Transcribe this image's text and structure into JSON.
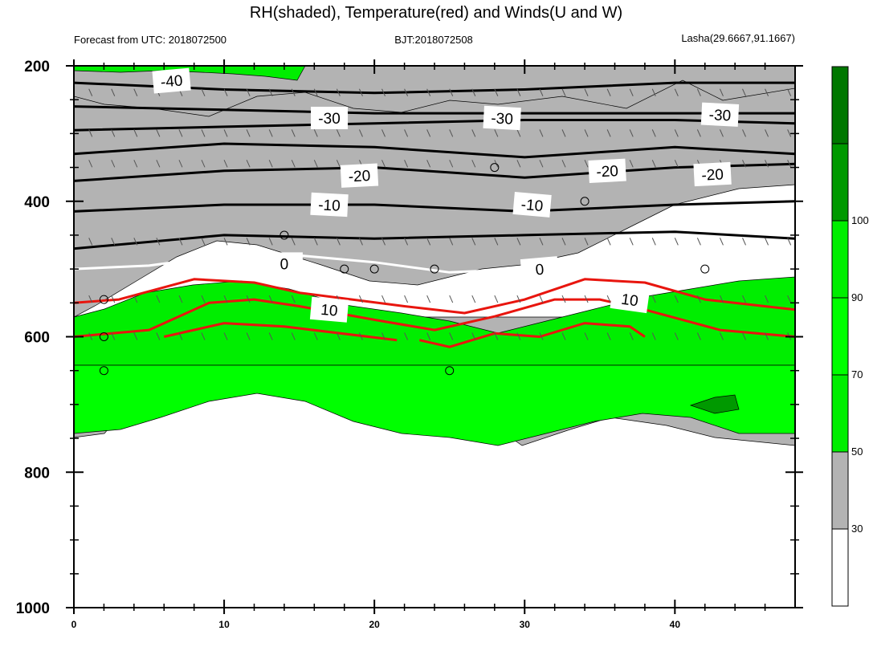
{
  "chart_data": {
    "type": "contour",
    "title": "RH(shaded), Temperature(red) and Winds(U and W)",
    "subtitle_left": "Forecast from UTC: 2018072500",
    "subtitle_center": "BJT:2018072508",
    "subtitle_right": "Lasha(29.6667,91.1667)",
    "xlim": [
      0,
      48
    ],
    "ylim": [
      1000,
      200
    ],
    "x_ticks": [
      0,
      10,
      20,
      30,
      40
    ],
    "y_ticks": [
      200,
      400,
      600,
      800,
      1000
    ],
    "colorbar": {
      "levels": [
        30,
        50,
        70,
        90,
        100
      ],
      "colors": [
        "#ffffff",
        "#b3b3b3",
        "#00ee00",
        "#00ff00",
        "#00ee00",
        "#009900",
        "#007700"
      ]
    },
    "temperature_labels": [
      "-40",
      "-30",
      "-30",
      "-30",
      "-20",
      "-20",
      "-20",
      "-10",
      "-10",
      "0",
      "0",
      "10",
      "10"
    ],
    "contours": {
      "white_zero": [
        [
          0,
          500
        ],
        [
          5,
          495
        ],
        [
          10,
          480
        ],
        [
          15,
          480
        ],
        [
          20,
          490
        ],
        [
          25,
          505
        ],
        [
          30,
          500
        ],
        [
          35,
          480
        ],
        [
          40,
          490
        ],
        [
          45,
          505
        ],
        [
          48,
          505
        ]
      ],
      "black_m10_a": [
        [
          0,
          415
        ],
        [
          10,
          405
        ],
        [
          20,
          405
        ],
        [
          30,
          415
        ],
        [
          40,
          405
        ],
        [
          48,
          400
        ]
      ],
      "black_m10_b": [
        [
          0,
          470
        ],
        [
          10,
          450
        ],
        [
          20,
          455
        ],
        [
          30,
          450
        ],
        [
          40,
          445
        ],
        [
          48,
          455
        ]
      ],
      "black_m20_a": [
        [
          0,
          370
        ],
        [
          10,
          355
        ],
        [
          20,
          350
        ],
        [
          30,
          365
        ],
        [
          40,
          350
        ],
        [
          48,
          345
        ]
      ],
      "black_m20_b": [
        [
          0,
          330
        ],
        [
          10,
          315
        ],
        [
          20,
          320
        ],
        [
          30,
          335
        ],
        [
          40,
          320
        ],
        [
          48,
          330
        ]
      ],
      "black_m30_a": [
        [
          0,
          295
        ],
        [
          10,
          290
        ],
        [
          20,
          285
        ],
        [
          30,
          280
        ],
        [
          40,
          280
        ],
        [
          48,
          285
        ]
      ],
      "black_m30_b": [
        [
          0,
          260
        ],
        [
          10,
          265
        ],
        [
          20,
          270
        ],
        [
          30,
          270
        ],
        [
          40,
          270
        ],
        [
          48,
          270
        ]
      ],
      "black_m40": [
        [
          0,
          225
        ],
        [
          10,
          235
        ],
        [
          20,
          240
        ],
        [
          30,
          235
        ],
        [
          40,
          225
        ],
        [
          48,
          225
        ]
      ],
      "red_1": [
        [
          0,
          550
        ],
        [
          3,
          545
        ],
        [
          8,
          515
        ],
        [
          12,
          520
        ],
        [
          15,
          535
        ],
        [
          22,
          555
        ],
        [
          26,
          565
        ],
        [
          30,
          545
        ],
        [
          34,
          515
        ],
        [
          38,
          520
        ],
        [
          42,
          545
        ],
        [
          48,
          560
        ]
      ],
      "red_2": [
        [
          0,
          600
        ],
        [
          5,
          590
        ],
        [
          9,
          550
        ],
        [
          12,
          545
        ],
        [
          15,
          555
        ],
        [
          20,
          575
        ],
        [
          24,
          590
        ],
        [
          28,
          570
        ],
        [
          32,
          545
        ],
        [
          35,
          545
        ],
        [
          38,
          560
        ],
        [
          43,
          590
        ],
        [
          48,
          600
        ]
      ],
      "red_3": [
        [
          6,
          600
        ],
        [
          10,
          580
        ],
        [
          14,
          585
        ],
        [
          21.5,
          605
        ]
      ],
      "red_4": [
        [
          23,
          605
        ],
        [
          25,
          615
        ],
        [
          28,
          595
        ],
        [
          31,
          600
        ],
        [
          34,
          580
        ],
        [
          37,
          585
        ],
        [
          38,
          600
        ]
      ]
    }
  }
}
